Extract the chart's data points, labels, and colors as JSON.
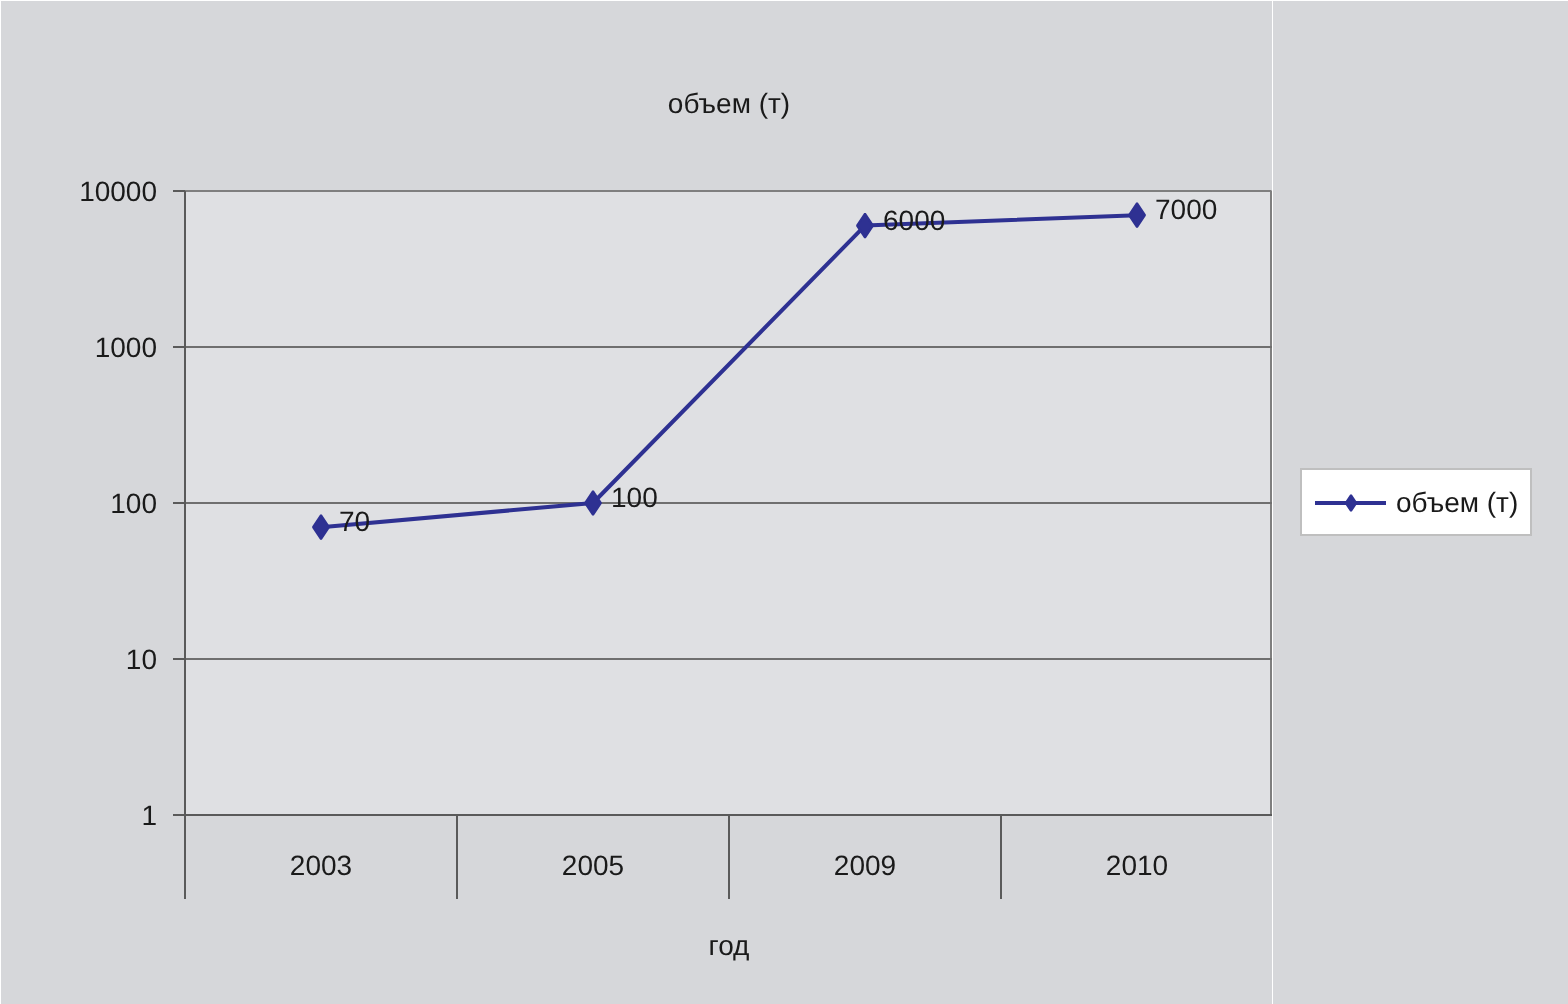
{
  "chart_data": {
    "type": "line",
    "title": "объем (т)",
    "xlabel": "год",
    "categories": [
      "2003",
      "2005",
      "2009",
      "2010"
    ],
    "series": [
      {
        "name": "объем (т)",
        "color": "#2e3192",
        "values": [
          70,
          100,
          6000,
          7000
        ]
      }
    ],
    "log": true,
    "ylim": [
      1,
      10000
    ],
    "yticks": [
      1,
      10,
      100,
      1000,
      10000
    ],
    "grid": "y",
    "legend": "right",
    "marker": "diamond",
    "line_style": "solid",
    "data_labels": true
  }
}
